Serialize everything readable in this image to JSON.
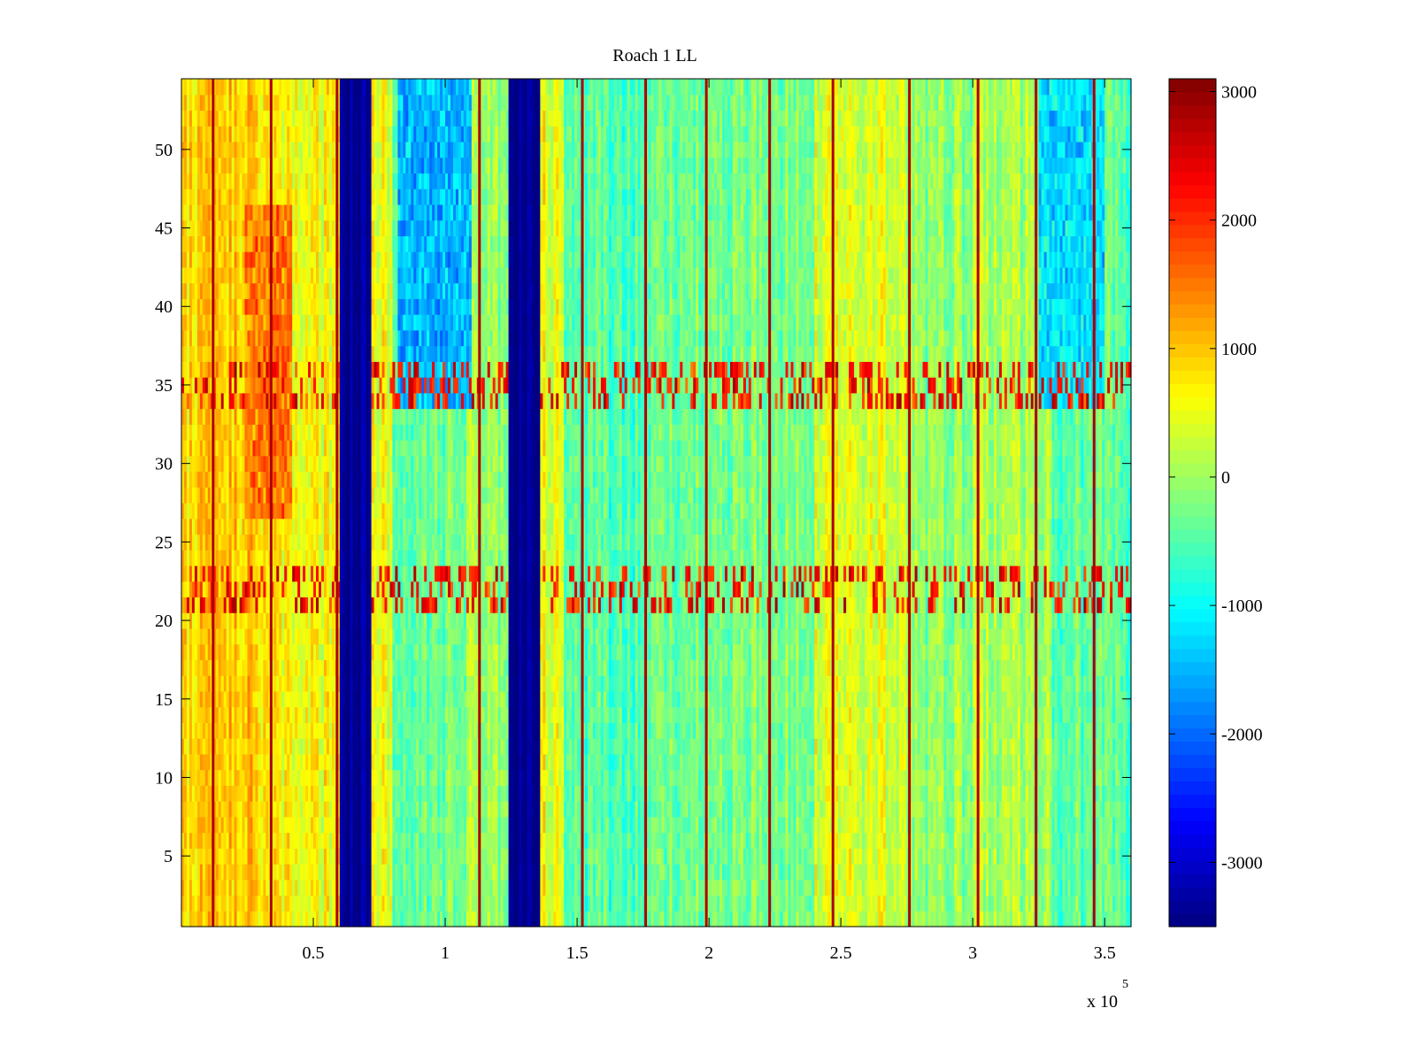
{
  "chart_data": {
    "type": "heatmap",
    "title": "Roach 1 LL",
    "xlabel": "",
    "ylabel": "",
    "x_multiplier_base": "x 10",
    "x_multiplier_exponent": "5",
    "xlim": [
      0,
      3.6
    ],
    "ylim": [
      0.5,
      54.5
    ],
    "x_ticks": [
      0.5,
      1,
      1.5,
      2,
      2.5,
      3,
      3.5
    ],
    "x_tick_labels": [
      "0.5",
      "1",
      "1.5",
      "2",
      "2.5",
      "3",
      "3.5"
    ],
    "y_ticks": [
      5,
      10,
      15,
      20,
      25,
      30,
      35,
      40,
      45,
      50
    ],
    "y_tick_labels": [
      "5",
      "10",
      "15",
      "20",
      "25",
      "30",
      "35",
      "40",
      "45",
      "50"
    ],
    "rows": 54,
    "colormap": "jet",
    "clim": [
      -3500,
      3100
    ],
    "colorbar_ticks": [
      3000,
      2000,
      1000,
      0,
      -1000,
      -2000,
      -3000
    ],
    "colorbar_tick_labels": [
      "3000",
      "2000",
      "1000",
      "0",
      "-1000",
      "-2000",
      "-3000"
    ],
    "regions": [
      {
        "x": [
          0.0,
          0.35
        ],
        "value": 900
      },
      {
        "x": [
          0.35,
          0.6
        ],
        "value": 600
      },
      {
        "x": [
          0.6,
          0.72
        ],
        "value": -3400
      },
      {
        "x": [
          0.72,
          0.8
        ],
        "value": 500
      },
      {
        "x": [
          0.8,
          1.0
        ],
        "value": -300
      },
      {
        "x": [
          1.0,
          1.24
        ],
        "value": -100
      },
      {
        "x": [
          1.24,
          1.36
        ],
        "value": -3400
      },
      {
        "x": [
          1.36,
          1.45
        ],
        "value": 500
      },
      {
        "x": [
          1.45,
          1.75
        ],
        "value": -500
      },
      {
        "x": [
          1.75,
          2.1
        ],
        "value": -300
      },
      {
        "x": [
          2.1,
          2.4
        ],
        "value": -200
      },
      {
        "x": [
          2.4,
          2.75
        ],
        "value": 400
      },
      {
        "x": [
          2.75,
          3.0
        ],
        "value": -100
      },
      {
        "x": [
          3.0,
          3.3
        ],
        "value": 100
      },
      {
        "x": [
          3.3,
          3.6
        ],
        "value": -400
      }
    ],
    "hot_bands": [
      {
        "x": [
          0.24,
          0.42
        ],
        "rows": [
          27,
          46
        ],
        "value": 1500
      },
      {
        "x": [
          0.82,
          1.1
        ],
        "rows": [
          34,
          54
        ],
        "value": -1500
      },
      {
        "x": [
          3.25,
          3.5
        ],
        "rows": [
          34,
          54
        ],
        "value": -1200
      }
    ],
    "streak_rows": [
      [
        21,
        23
      ],
      [
        34,
        36
      ]
    ],
    "streak_value": 2200,
    "spikes": [
      0.12,
      0.34,
      0.59,
      1.13,
      1.52,
      1.76,
      1.99,
      2.23,
      2.47,
      2.76,
      3.02,
      3.24,
      3.46
    ],
    "spike_value": 2800
  }
}
